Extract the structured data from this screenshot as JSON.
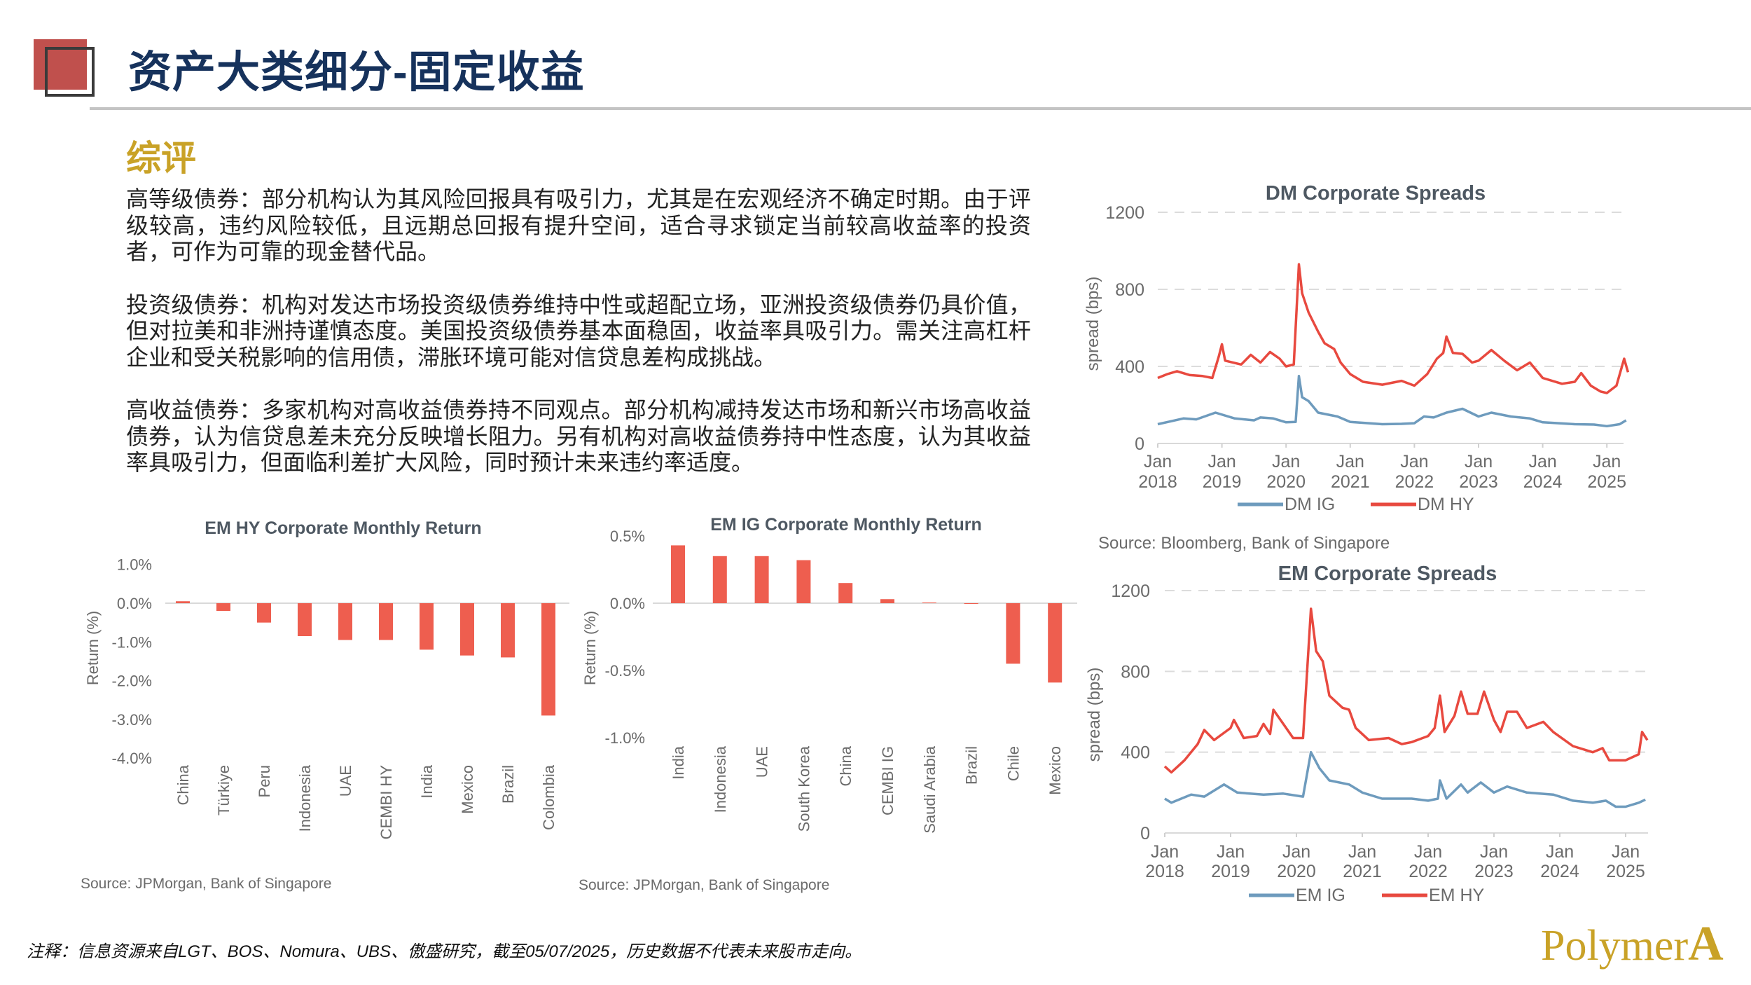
{
  "header": {
    "title": "资产大类细分-固定收益",
    "section_heading": "综评"
  },
  "commentary": [
    "高等级债券：部分机构认为其风险回报具有吸引力，尤其是在宏观经济不确定时期。由于评级较高，违约风险较低，且远期总回报有提升空间，适合寻求锁定当前较高收益率的投资者，可作为可靠的现金替代品。",
    "投资级债券：机构对发达市场投资级债券维持中性或超配立场，亚洲投资级债券仍具价值，但对拉美和非洲持谨慎态度。美国投资级债券基本面稳固，收益率具吸引力。需关注高杠杆企业和受关税影响的信用债，滞胀环境可能对信贷息差构成挑战。",
    "高收益债券：多家机构对高收益债券持不同观点。部分机构减持发达市场和新兴市场高收益债券，认为信贷息差未充分反映增长阻力。另有机构对高收益债券持中性态度，认为其收益率具吸引力，但面临利差扩大风险，同时预计未来违约率适度。"
  ],
  "footer": {
    "note": "注释：信息资源来自LGT、BOS、Nomura、UBS、傲盛研究，截至05/07/2025，历史数据不代表未来股市走向。",
    "logo_text": "PolymerA"
  },
  "colors": {
    "bar": "#ee5e4f",
    "hy_line": "#e8493f",
    "ig_line": "#6e9bbd",
    "title_navy": "#16325c",
    "heading_gold": "#c9a227"
  },
  "chart_data": [
    {
      "id": "em-hy-return",
      "type": "bar",
      "title": "EM HY Corporate Monthly Return",
      "ylabel": "Return (%)",
      "xlabel": "",
      "categories": [
        "China",
        "Türkiye",
        "Peru",
        "Indonesia",
        "UAE",
        "CEMBI HY",
        "India",
        "Mexico",
        "Brazil",
        "Colombia"
      ],
      "values": [
        0.05,
        -0.2,
        -0.5,
        -0.85,
        -0.95,
        -0.95,
        -1.2,
        -1.35,
        -1.4,
        -2.9
      ],
      "yticks": [
        1,
        0,
        -1,
        -2,
        -3,
        -4
      ],
      "ytick_labels": [
        "1.0%",
        "0.0%",
        "-1.0%",
        "-2.0%",
        "-3.0%",
        "-4.0%"
      ],
      "ylim": [
        -4,
        1
      ],
      "source": "Source: JPMorgan, Bank of Singapore"
    },
    {
      "id": "em-ig-return",
      "type": "bar",
      "title": "EM IG Corporate Monthly Return",
      "ylabel": "Return (%)",
      "xlabel": "",
      "categories": [
        "India",
        "Indonesia",
        "UAE",
        "South Korea",
        "China",
        "CEMBI IG",
        "Saudi Arabia",
        "Brazil",
        "Chile",
        "Mexico"
      ],
      "values": [
        0.43,
        0.35,
        0.35,
        0.32,
        0.15,
        0.03,
        0.005,
        -0.005,
        -0.45,
        -0.59
      ],
      "yticks": [
        0.5,
        0,
        -0.5,
        -1
      ],
      "ytick_labels": [
        "0.5%",
        "0.0%",
        "-0.5%",
        "-1.0%"
      ],
      "ylim": [
        -1,
        0.5
      ],
      "source": "Source: JPMorgan, Bank of Singapore"
    },
    {
      "id": "dm-spreads",
      "type": "line",
      "title": "DM Corporate Spreads",
      "ylabel": "spread (bps)",
      "ylim": [
        0,
        1200
      ],
      "yticks": [
        0,
        400,
        800,
        1200
      ],
      "ytick_labels": [
        "0",
        "400",
        "800",
        "1200"
      ],
      "xticks": [
        2018,
        2019,
        2020,
        2021,
        2022,
        2023,
        2024,
        2025
      ],
      "xtick_month": "Jan",
      "xtick_years": [
        "2018",
        "2019",
        "2020",
        "2021",
        "2022",
        "2023",
        "2024",
        "2025"
      ],
      "grid": "dashed horizontal",
      "legend": "bottom-center",
      "source": "Source: Bloomberg, Bank of Singapore",
      "series": [
        {
          "name": "DM IG",
          "color": "#6e9bbd",
          "points": [
            [
              2018.0,
              100
            ],
            [
              2018.2,
              115
            ],
            [
              2018.4,
              130
            ],
            [
              2018.6,
              125
            ],
            [
              2018.9,
              160
            ],
            [
              2019.2,
              130
            ],
            [
              2019.5,
              120
            ],
            [
              2019.6,
              135
            ],
            [
              2019.8,
              130
            ],
            [
              2020.0,
              110
            ],
            [
              2020.15,
              112
            ],
            [
              2020.2,
              350
            ],
            [
              2020.25,
              240
            ],
            [
              2020.35,
              220
            ],
            [
              2020.5,
              160
            ],
            [
              2020.8,
              140
            ],
            [
              2021.0,
              112
            ],
            [
              2021.5,
              100
            ],
            [
              2021.8,
              102
            ],
            [
              2022.0,
              105
            ],
            [
              2022.15,
              140
            ],
            [
              2022.3,
              135
            ],
            [
              2022.5,
              160
            ],
            [
              2022.75,
              180
            ],
            [
              2023.0,
              140
            ],
            [
              2023.2,
              160
            ],
            [
              2023.5,
              140
            ],
            [
              2023.8,
              130
            ],
            [
              2024.0,
              110
            ],
            [
              2024.5,
              100
            ],
            [
              2024.8,
              98
            ],
            [
              2025.0,
              90
            ],
            [
              2025.2,
              100
            ],
            [
              2025.3,
              120
            ]
          ]
        },
        {
          "name": "DM HY",
          "color": "#e8493f",
          "points": [
            [
              2018.0,
              340
            ],
            [
              2018.15,
              360
            ],
            [
              2018.3,
              375
            ],
            [
              2018.5,
              355
            ],
            [
              2018.7,
              350
            ],
            [
              2018.85,
              340
            ],
            [
              2018.95,
              450
            ],
            [
              2019.0,
              515
            ],
            [
              2019.05,
              430
            ],
            [
              2019.3,
              410
            ],
            [
              2019.45,
              460
            ],
            [
              2019.6,
              420
            ],
            [
              2019.75,
              475
            ],
            [
              2019.9,
              440
            ],
            [
              2020.0,
              400
            ],
            [
              2020.12,
              410
            ],
            [
              2020.2,
              930
            ],
            [
              2020.25,
              780
            ],
            [
              2020.35,
              680
            ],
            [
              2020.5,
              580
            ],
            [
              2020.6,
              520
            ],
            [
              2020.75,
              490
            ],
            [
              2020.85,
              420
            ],
            [
              2021.0,
              360
            ],
            [
              2021.2,
              320
            ],
            [
              2021.5,
              305
            ],
            [
              2021.8,
              325
            ],
            [
              2022.0,
              300
            ],
            [
              2022.2,
              360
            ],
            [
              2022.35,
              440
            ],
            [
              2022.45,
              470
            ],
            [
              2022.5,
              555
            ],
            [
              2022.6,
              470
            ],
            [
              2022.75,
              465
            ],
            [
              2022.9,
              420
            ],
            [
              2023.0,
              430
            ],
            [
              2023.2,
              485
            ],
            [
              2023.4,
              430
            ],
            [
              2023.6,
              380
            ],
            [
              2023.8,
              420
            ],
            [
              2024.0,
              340
            ],
            [
              2024.3,
              310
            ],
            [
              2024.5,
              320
            ],
            [
              2024.6,
              365
            ],
            [
              2024.75,
              300
            ],
            [
              2024.9,
              270
            ],
            [
              2025.0,
              262
            ],
            [
              2025.15,
              300
            ],
            [
              2025.27,
              440
            ],
            [
              2025.33,
              370
            ]
          ]
        }
      ]
    },
    {
      "id": "em-spreads",
      "type": "line",
      "title": "EM Corporate Spreads",
      "ylabel": "spread (bps)",
      "ylim": [
        0,
        1200
      ],
      "yticks": [
        0,
        400,
        800,
        1200
      ],
      "ytick_labels": [
        "0",
        "400",
        "800",
        "1200"
      ],
      "xticks": [
        2018,
        2019,
        2020,
        2021,
        2022,
        2023,
        2024,
        2025
      ],
      "xtick_month": "Jan",
      "xtick_years": [
        "2018",
        "2019",
        "2020",
        "2021",
        "2022",
        "2023",
        "2024",
        "2025"
      ],
      "grid": "dashed horizontal",
      "legend": "bottom-center",
      "series": [
        {
          "name": "EM IG",
          "color": "#6e9bbd",
          "points": [
            [
              2018.0,
              170
            ],
            [
              2018.1,
              150
            ],
            [
              2018.4,
              190
            ],
            [
              2018.6,
              180
            ],
            [
              2018.9,
              240
            ],
            [
              2019.1,
              200
            ],
            [
              2019.5,
              190
            ],
            [
              2019.8,
              195
            ],
            [
              2020.1,
              180
            ],
            [
              2020.22,
              400
            ],
            [
              2020.35,
              320
            ],
            [
              2020.5,
              260
            ],
            [
              2020.8,
              240
            ],
            [
              2021.0,
              200
            ],
            [
              2021.3,
              170
            ],
            [
              2021.75,
              170
            ],
            [
              2022.0,
              160
            ],
            [
              2022.15,
              170
            ],
            [
              2022.18,
              260
            ],
            [
              2022.28,
              170
            ],
            [
              2022.5,
              240
            ],
            [
              2022.6,
              200
            ],
            [
              2022.8,
              250
            ],
            [
              2023.0,
              200
            ],
            [
              2023.2,
              230
            ],
            [
              2023.5,
              200
            ],
            [
              2023.9,
              190
            ],
            [
              2024.2,
              160
            ],
            [
              2024.5,
              150
            ],
            [
              2024.7,
              160
            ],
            [
              2024.85,
              130
            ],
            [
              2025.0,
              130
            ],
            [
              2025.2,
              150
            ],
            [
              2025.3,
              165
            ]
          ]
        },
        {
          "name": "EM HY",
          "color": "#e8493f",
          "points": [
            [
              2018.0,
              330
            ],
            [
              2018.1,
              300
            ],
            [
              2018.3,
              360
            ],
            [
              2018.5,
              440
            ],
            [
              2018.6,
              510
            ],
            [
              2018.75,
              460
            ],
            [
              2019.0,
              520
            ],
            [
              2019.05,
              560
            ],
            [
              2019.2,
              470
            ],
            [
              2019.4,
              480
            ],
            [
              2019.5,
              540
            ],
            [
              2019.6,
              490
            ],
            [
              2019.65,
              610
            ],
            [
              2019.8,
              540
            ],
            [
              2019.95,
              470
            ],
            [
              2020.1,
              470
            ],
            [
              2020.22,
              1110
            ],
            [
              2020.3,
              900
            ],
            [
              2020.4,
              850
            ],
            [
              2020.5,
              680
            ],
            [
              2020.7,
              620
            ],
            [
              2020.8,
              610
            ],
            [
              2020.9,
              520
            ],
            [
              2021.1,
              460
            ],
            [
              2021.4,
              470
            ],
            [
              2021.6,
              440
            ],
            [
              2021.75,
              450
            ],
            [
              2022.0,
              480
            ],
            [
              2022.1,
              520
            ],
            [
              2022.18,
              680
            ],
            [
              2022.25,
              500
            ],
            [
              2022.4,
              580
            ],
            [
              2022.5,
              700
            ],
            [
              2022.6,
              590
            ],
            [
              2022.75,
              590
            ],
            [
              2022.85,
              700
            ],
            [
              2023.0,
              560
            ],
            [
              2023.1,
              500
            ],
            [
              2023.2,
              600
            ],
            [
              2023.35,
              600
            ],
            [
              2023.5,
              520
            ],
            [
              2023.75,
              550
            ],
            [
              2023.9,
              500
            ],
            [
              2024.2,
              430
            ],
            [
              2024.5,
              400
            ],
            [
              2024.65,
              420
            ],
            [
              2024.75,
              360
            ],
            [
              2025.0,
              360
            ],
            [
              2025.2,
              390
            ],
            [
              2025.25,
              500
            ],
            [
              2025.33,
              460
            ]
          ]
        }
      ]
    }
  ]
}
